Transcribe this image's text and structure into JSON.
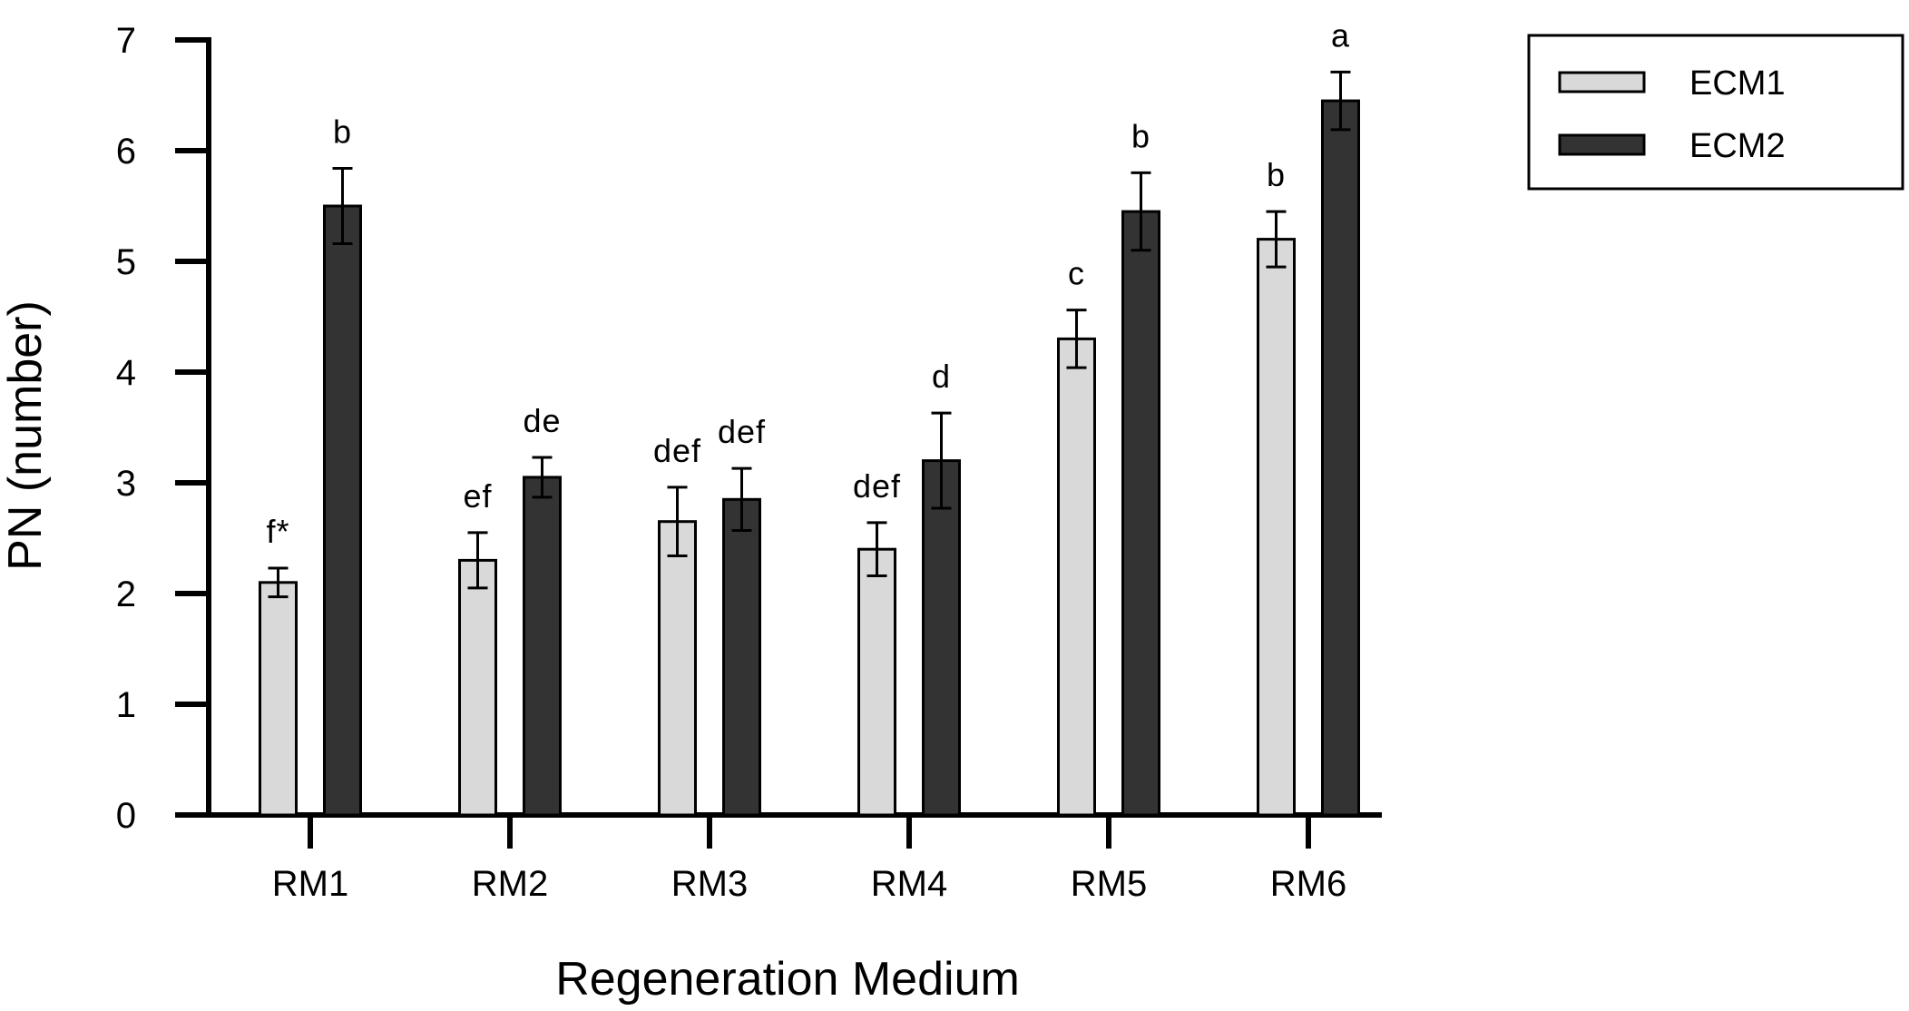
{
  "chart_data": {
    "type": "bar",
    "title": "",
    "xlabel": "Regeneration Medium",
    "ylabel": "PN (number)",
    "ylim": [
      0,
      7
    ],
    "yticks": [
      "0",
      "1",
      "2",
      "3",
      "4",
      "5",
      "6",
      "7"
    ],
    "categories": [
      "RM1",
      "RM2",
      "RM3",
      "RM4",
      "RM5",
      "RM6"
    ],
    "series": [
      {
        "name": "ECM1",
        "color": "#d9d9d9",
        "values": [
          2.1,
          2.3,
          2.65,
          2.4,
          4.3,
          5.2
        ],
        "errors": [
          0.13,
          0.25,
          0.31,
          0.24,
          0.26,
          0.25
        ],
        "labels": [
          "f*",
          "ef",
          "def",
          "def",
          "c",
          "b"
        ]
      },
      {
        "name": "ECM2",
        "color": "#333333",
        "values": [
          5.5,
          3.05,
          2.85,
          3.2,
          5.45,
          6.45
        ],
        "errors": [
          0.34,
          0.18,
          0.28,
          0.43,
          0.35,
          0.26
        ],
        "labels": [
          "b",
          "de",
          "def",
          "d",
          "b",
          "a"
        ]
      }
    ],
    "legend": "top-right"
  }
}
